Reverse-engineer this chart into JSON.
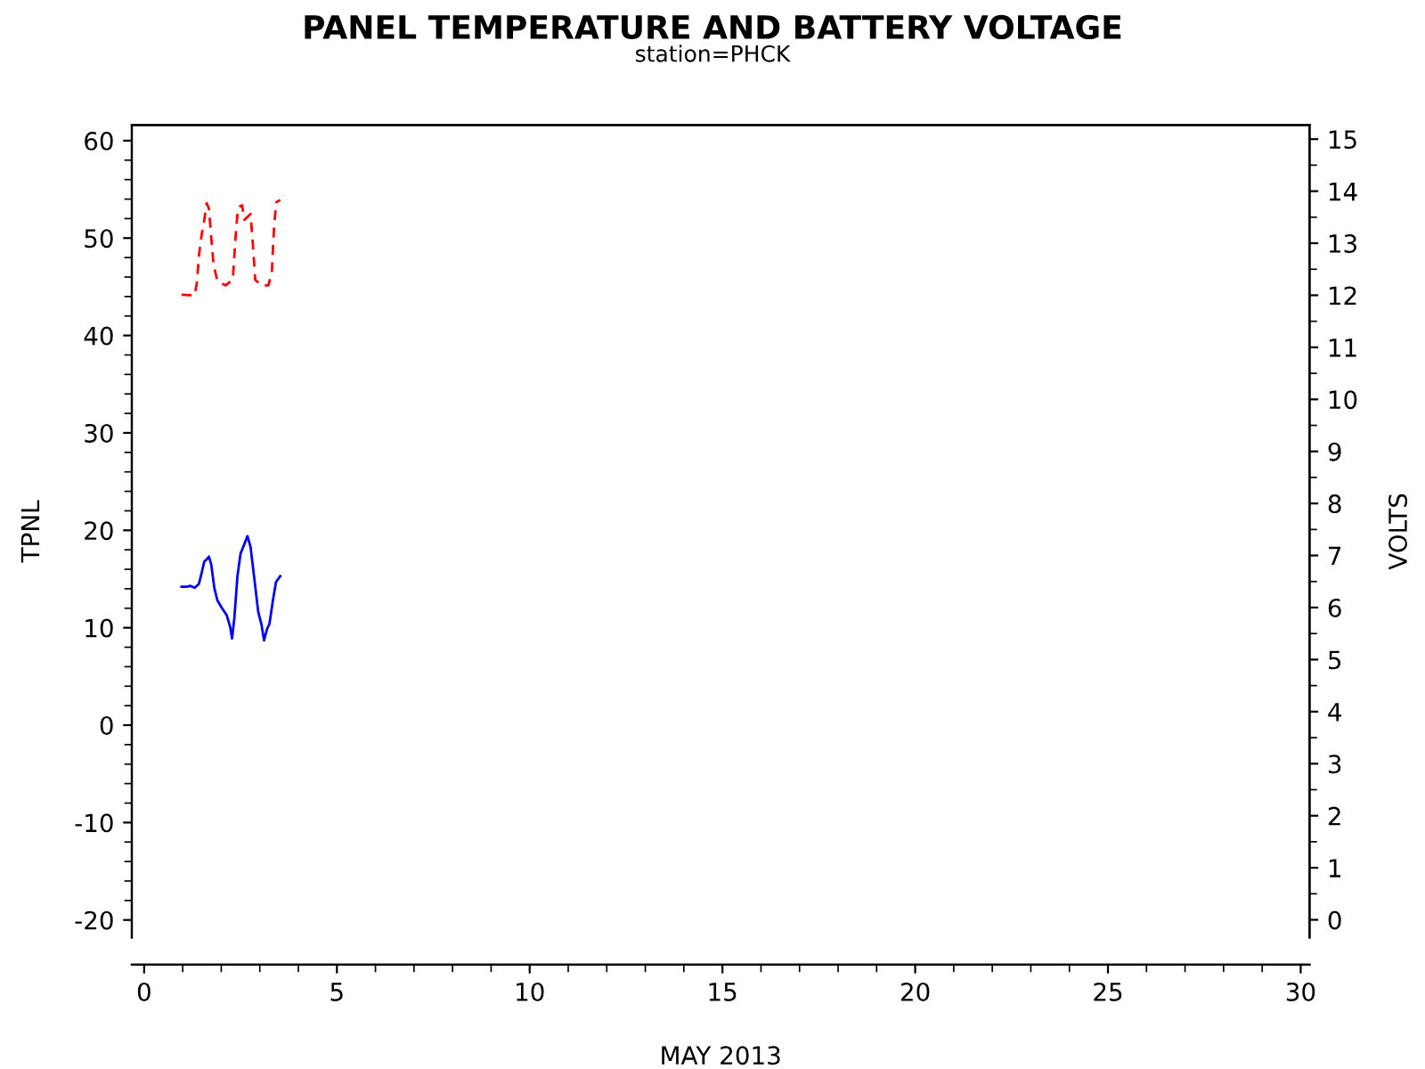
{
  "chart_data": {
    "type": "line",
    "title": "PANEL TEMPERATURE AND BATTERY VOLTAGE",
    "subtitle": "station=PHCK",
    "xlabel": "MAY 2013",
    "ylabel": "TPNL",
    "y2label": "VOLTS",
    "xlim": [
      -0.32,
      30.23
    ],
    "xticks": [
      0,
      5,
      10,
      15,
      20,
      25,
      30
    ],
    "ylim": [
      -21.8,
      61.6
    ],
    "yticks": [
      -20,
      -10,
      0,
      10,
      20,
      30,
      40,
      50,
      60
    ],
    "y2lim": [
      -0.34,
      15.27
    ],
    "y2ticks": [
      0,
      1,
      2,
      3,
      4,
      5,
      6,
      7,
      8,
      9,
      10,
      11,
      12,
      13,
      14,
      15
    ],
    "grid": false,
    "legend": false,
    "series": [
      {
        "color": "#0000ff",
        "line_style": "solid",
        "x": [
          0.97,
          1.11,
          1.19,
          1.31,
          1.42,
          1.49,
          1.56,
          1.62,
          1.68,
          1.74,
          1.82,
          1.9,
          2.02,
          2.14,
          2.23,
          2.28,
          2.34,
          2.42,
          2.5,
          2.6,
          2.68,
          2.76,
          2.85,
          2.96,
          3.04,
          3.11,
          3.19,
          3.25,
          3.34,
          3.42,
          3.53
        ],
        "values": [
          14.2,
          14.2,
          14.3,
          14.1,
          14.5,
          15.6,
          16.8,
          17.0,
          17.3,
          16.5,
          14.1,
          12.8,
          12.0,
          11.3,
          10.1,
          8.9,
          11.0,
          15.3,
          17.6,
          18.6,
          19.4,
          18.3,
          15.3,
          11.6,
          10.4,
          8.7,
          9.9,
          10.4,
          12.8,
          14.7,
          15.3
        ]
      },
      {
        "color": "#ff0000",
        "line_style": "dashed",
        "axis": "y2",
        "x": [
          0.97,
          1.31,
          1.37,
          1.42,
          1.49,
          1.56,
          1.62,
          1.68,
          1.74,
          1.8,
          1.9,
          2.11,
          2.3,
          2.37,
          2.42,
          2.46,
          2.54,
          2.6,
          2.76,
          2.82,
          2.88,
          3.04,
          3.22,
          3.31,
          3.37,
          3.43,
          3.53
        ],
        "values": [
          12.01,
          12.0,
          12.25,
          12.76,
          13.16,
          13.45,
          13.77,
          13.67,
          13.11,
          12.59,
          12.27,
          12.19,
          12.3,
          13.11,
          13.56,
          13.7,
          13.73,
          13.45,
          13.56,
          12.99,
          12.3,
          12.19,
          12.19,
          12.42,
          13.33,
          13.79,
          13.83
        ]
      }
    ]
  }
}
